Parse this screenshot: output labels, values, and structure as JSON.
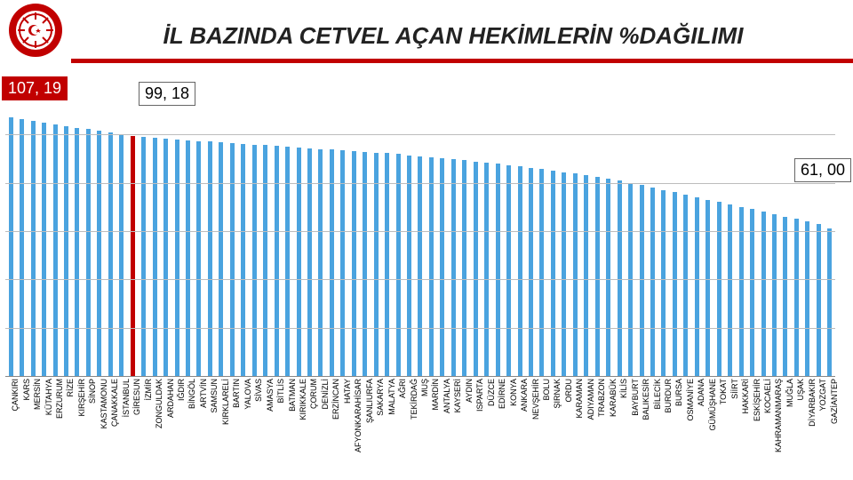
{
  "title": "İL BAZINDA CETVEL AÇAN HEKİMLERİN %DAĞILIMI",
  "logo": {
    "outer": "#c10000",
    "inner": "#ffffff"
  },
  "chart": {
    "type": "bar",
    "ylim": [
      0,
      110
    ],
    "gridlines": [
      20,
      40,
      60,
      80,
      100
    ],
    "bar_color": "#4aa3df",
    "highlight_color": "#c10000",
    "grid_color": "#bdbdbd",
    "bg": "#ffffff",
    "highlight_index": 11,
    "callouts": {
      "first": "107, 19",
      "highlight": "99, 18",
      "last": "61, 00"
    },
    "categories": [
      "ÇANKIRI",
      "KARS",
      "MERSİN",
      "KÜTAHYA",
      "ERZURUM",
      "RİZE",
      "KIRŞEHİR",
      "SİNOP",
      "KASTAMONU",
      "ÇANAKKALE",
      "İSTANBUL",
      "GİRESUN",
      "İZMİR",
      "ZONGULDAK",
      "ARDAHAN",
      "IĞDIR",
      "BİNGÖL",
      "ARTVİN",
      "SAMSUN",
      "KIRKLARELİ",
      "BARTIN",
      "YALOVA",
      "SİVAS",
      "AMASYA",
      "BİTLİS",
      "BATMAN",
      "KIRIKKALE",
      "ÇORUM",
      "DENİZLİ",
      "ERZİNCAN",
      "HATAY",
      "AFYONKARAHİSAR",
      "ŞANLIURFA",
      "SAKARYA",
      "MALATYA",
      "AĞRI",
      "TEKİRDAĞ",
      "MUŞ",
      "MARDİN",
      "ANTALYA",
      "KAYSERİ",
      "AYDIN",
      "ISPARTA",
      "DÜZCE",
      "EDİRNE",
      "KONYA",
      "ANKARA",
      "NEVŞEHİR",
      "BOLU",
      "ŞIRNAK",
      "ORDU",
      "KARAMAN",
      "ADIYAMAN",
      "TRABZON",
      "KARABÜK",
      "KİLİS",
      "BAYBURT",
      "BALIKESİR",
      "BİLECİK",
      "BURDUR",
      "BURSA",
      "OSMANİYE",
      "ADANA",
      "GÜMÜŞHANE",
      "TOKAT",
      "SİİRT",
      "HAKKARİ",
      "ESKİŞEHİR",
      "KOCAELİ",
      "KAHRAMANMARAŞ",
      "MUĞLA",
      "UŞAK",
      "DİYARBAKIR",
      "YOZGAT",
      "GAZİANTEP"
    ],
    "values": [
      107.19,
      106.3,
      105.5,
      104.8,
      104.2,
      103.5,
      102.8,
      102.1,
      101.4,
      100.7,
      100.0,
      99.18,
      98.8,
      98.5,
      98.2,
      97.9,
      97.6,
      97.3,
      97.0,
      96.7,
      96.4,
      96.1,
      95.8,
      95.5,
      95.2,
      94.9,
      94.6,
      94.3,
      94.0,
      93.7,
      93.4,
      93.1,
      92.8,
      92.5,
      92.2,
      91.8,
      91.4,
      91.0,
      90.6,
      90.2,
      89.8,
      89.3,
      88.8,
      88.3,
      87.8,
      87.3,
      86.8,
      86.2,
      85.6,
      85.0,
      84.4,
      83.8,
      83.1,
      82.4,
      81.6,
      80.8,
      80.0,
      79.0,
      78.0,
      77.0,
      76.0,
      75.0,
      74.0,
      73.0,
      72.0,
      71.0,
      70.0,
      69.0,
      68.0,
      67.0,
      66.0,
      65.0,
      64.0,
      63.0,
      61.0
    ]
  }
}
